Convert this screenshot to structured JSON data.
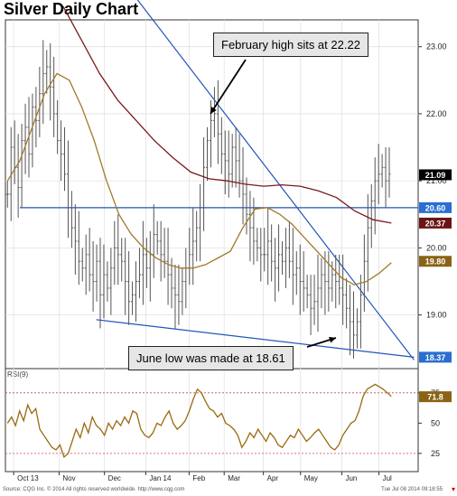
{
  "title": "Silver Daily Chart",
  "annotations": {
    "feb_high": "February high sits at 22.22",
    "june_low": "June low was made at 18.61"
  },
  "footer": {
    "left": "Source: CQG Inc. © 2014 All rights reserved worldwide. http://www.cqg.com",
    "right": "Tue Jul 08 2014 09:18:55"
  },
  "colors": {
    "price_bars": "#555555",
    "ma_short": "#a07a2a",
    "ma_long": "#7a1a1a",
    "trendline": "#2255bb",
    "rsi": "#9a6a10",
    "badge_price": "#000000",
    "badge_blue": "#2a6fd0",
    "badge_dark_red": "#6a1515",
    "badge_gold": "#8a6414"
  },
  "chart_data": [
    {
      "type": "line",
      "title": "Silver Daily Chart",
      "ylim": [
        18.2,
        23.4
      ],
      "yticks": [
        "23.00",
        "22.00",
        "21.00",
        "20.00",
        "19.00"
      ],
      "yticks_values": [
        23,
        22,
        21,
        20,
        19
      ],
      "x_labels": [
        "Oct 13",
        "Nov",
        "Dec",
        "Jan 14",
        "Feb",
        "Mar",
        "Apr",
        "May",
        "Jun",
        "Jul"
      ],
      "series": [
        {
          "role": "price_close",
          "values": [
            20.8,
            21.5,
            21.2,
            20.9,
            21.6,
            21.8,
            21.4,
            22.1,
            21.9,
            22.3,
            22.6,
            22.7,
            22.4,
            22.0,
            21.6,
            21.4,
            21.1,
            20.6,
            20.3,
            20.1,
            19.8,
            19.7,
            19.9,
            19.6,
            19.5,
            19.8,
            19.3,
            19.6,
            19.4,
            19.7,
            20.0,
            19.9,
            19.8,
            19.5,
            19.2,
            19.3,
            19.5,
            19.6,
            19.9,
            19.7,
            19.9,
            20.2,
            20.1,
            19.9,
            19.8,
            19.6,
            19.4,
            19.3,
            19.2,
            19.5,
            19.7,
            19.9,
            20.1,
            20.3,
            20.6,
            21.2,
            21.6,
            21.9,
            22.0,
            21.7,
            21.4,
            21.3,
            21.1,
            21.5,
            21.3,
            21.0,
            20.8,
            20.5,
            20.3,
            20.1,
            20.0,
            19.9,
            19.9,
            20.1,
            19.8,
            19.7,
            19.9,
            19.8,
            20.0,
            19.8,
            19.6,
            19.7,
            19.5,
            19.4,
            19.3,
            19.1,
            19.2,
            19.4,
            19.6,
            19.5,
            19.4,
            19.6,
            19.5,
            19.4,
            19.3,
            19.1,
            18.9,
            18.7,
            18.9,
            19.3,
            19.8,
            20.3,
            20.7,
            21.0,
            21.1,
            21.2,
            21.0,
            21.1
          ]
        },
        {
          "role": "ma_short",
          "values": [
            21.0,
            21.3,
            21.8,
            22.3,
            22.6,
            22.5,
            22.1,
            21.6,
            21.0,
            20.5,
            20.2,
            20.0,
            19.85,
            19.75,
            19.7,
            19.7,
            19.75,
            19.85,
            19.95,
            20.3,
            20.58,
            20.6,
            20.5,
            20.35,
            20.15,
            19.95,
            19.75,
            19.55,
            19.45,
            19.5,
            19.62,
            19.78
          ]
        },
        {
          "role": "ma_long",
          "values": [
            23.6,
            23.1,
            22.6,
            22.2,
            21.9,
            21.6,
            21.35,
            21.13,
            21.03,
            21.0,
            20.95,
            20.92,
            20.94,
            20.92,
            20.85,
            20.75,
            20.55,
            20.42,
            20.37
          ]
        }
      ],
      "trendlines": [
        {
          "role": "upper_resistance",
          "from": [
            0.27,
            24.1
          ],
          "to": [
            0.99,
            18.33
          ]
        },
        {
          "role": "lower_support",
          "from": [
            0.22,
            18.93
          ],
          "to": [
            0.99,
            18.37
          ]
        },
        {
          "role": "horizontal_level",
          "value": 20.6
        }
      ],
      "price_badges": [
        {
          "label": "21.09",
          "color": "#000000"
        },
        {
          "label": "20.60",
          "color": "#2a6fd0"
        },
        {
          "label": "20.37",
          "color": "#6a1515"
        },
        {
          "label": "19.80",
          "color": "#8a6414"
        },
        {
          "label": "18.37",
          "color": "#2a6fd0"
        }
      ]
    },
    {
      "type": "line",
      "title": "RSI(9)",
      "ylim": [
        10,
        95
      ],
      "yticks": [
        "75",
        "50",
        "25"
      ],
      "yticks_values": [
        75,
        50,
        25
      ],
      "reference_lines": [
        75,
        25
      ],
      "series": [
        {
          "role": "rsi",
          "values": [
            50,
            55,
            48,
            60,
            52,
            65,
            58,
            62,
            45,
            40,
            35,
            30,
            28,
            32,
            22,
            25,
            35,
            45,
            38,
            50,
            42,
            55,
            48,
            45,
            40,
            50,
            45,
            52,
            48,
            55,
            50,
            60,
            58,
            45,
            40,
            38,
            42,
            50,
            48,
            55,
            60,
            50,
            45,
            48,
            52,
            60,
            70,
            78,
            75,
            68,
            62,
            60,
            55,
            58,
            50,
            48,
            45,
            40,
            30,
            35,
            42,
            38,
            45,
            40,
            35,
            42,
            38,
            32,
            30,
            35,
            40,
            38,
            45,
            40,
            35,
            38,
            42,
            45,
            40,
            35,
            30,
            28,
            32,
            40,
            45,
            50,
            52,
            60,
            72,
            78,
            80,
            82,
            80,
            78,
            75,
            72
          ]
        }
      ],
      "badge": {
        "label": "71.8",
        "color": "#8a6414"
      }
    }
  ]
}
